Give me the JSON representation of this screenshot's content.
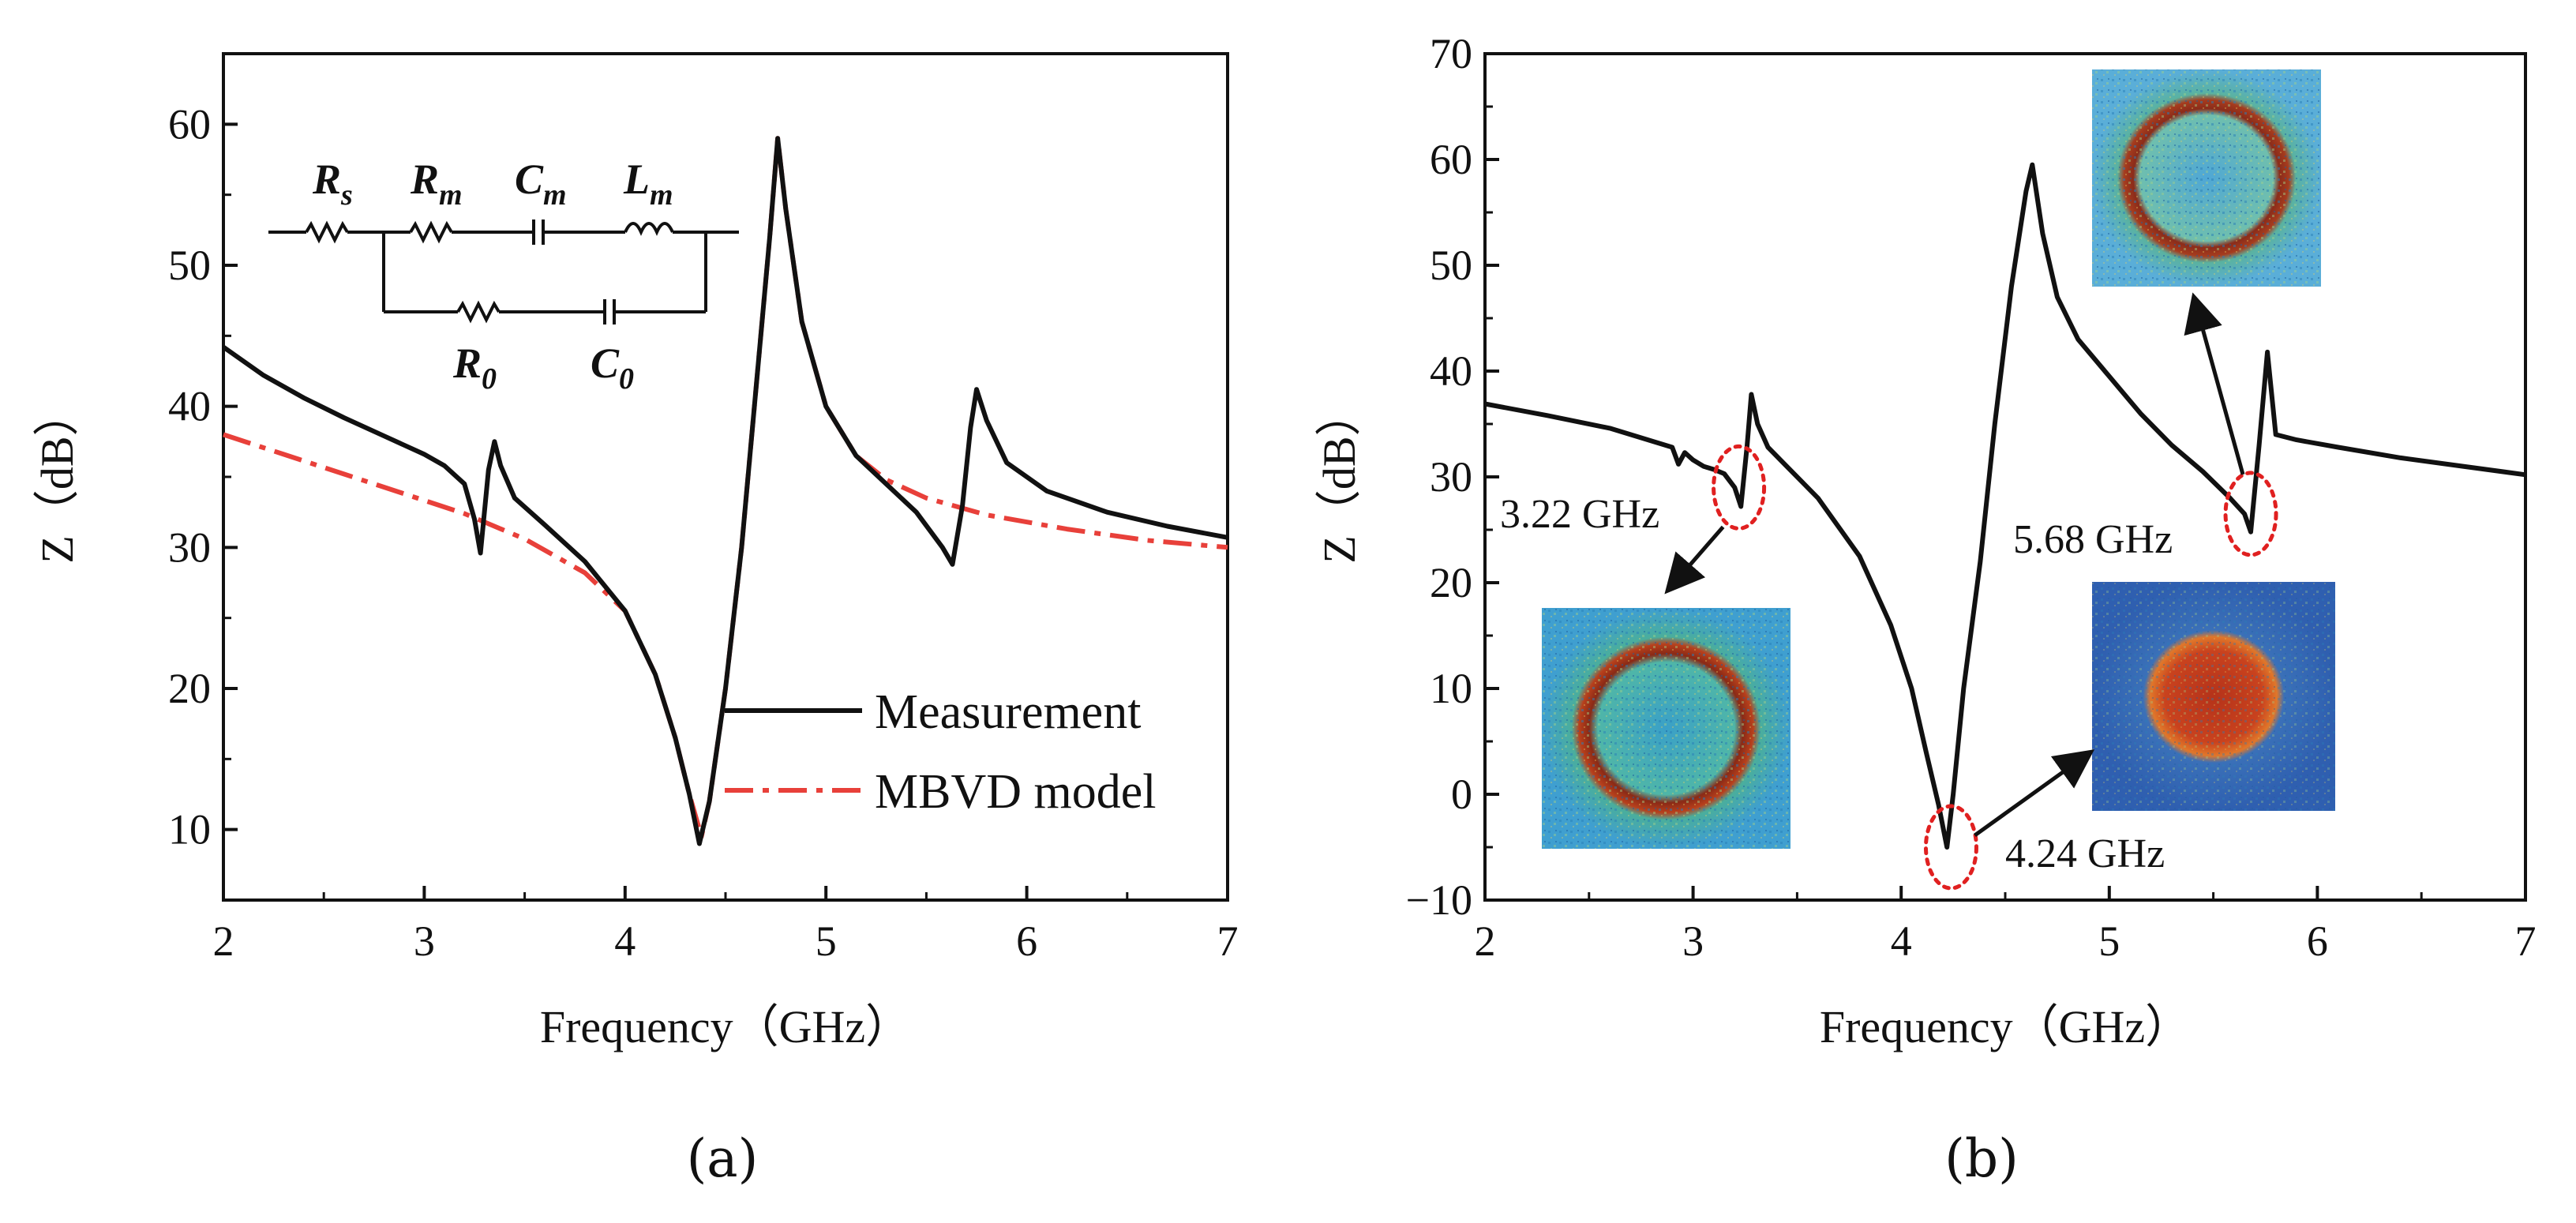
{
  "chart_data": [
    {
      "panel": "(a)",
      "type": "line",
      "xlabel": "Frequency（GHz）",
      "ylabel": "Z（dB）",
      "xlim": [
        2,
        7
      ],
      "ylim": [
        5,
        65
      ],
      "xticks": [
        2,
        3,
        4,
        5,
        6,
        7
      ],
      "yticks": [
        10,
        20,
        30,
        40,
        50,
        60
      ],
      "legend_position": "bottom-right",
      "series": [
        {
          "name": "Measurement",
          "style": "solid",
          "color": "#111111",
          "points": [
            [
              2.0,
              44.2
            ],
            [
              2.2,
              42.2
            ],
            [
              2.4,
              40.6
            ],
            [
              2.6,
              39.2
            ],
            [
              2.8,
              37.9
            ],
            [
              3.0,
              36.6
            ],
            [
              3.1,
              35.8
            ],
            [
              3.2,
              34.5
            ],
            [
              3.25,
              32.0
            ],
            [
              3.28,
              29.6
            ],
            [
              3.32,
              35.5
            ],
            [
              3.35,
              37.5
            ],
            [
              3.38,
              35.8
            ],
            [
              3.45,
              33.5
            ],
            [
              3.6,
              31.6
            ],
            [
              3.8,
              29.0
            ],
            [
              4.0,
              25.5
            ],
            [
              4.15,
              21.0
            ],
            [
              4.25,
              16.5
            ],
            [
              4.32,
              12.5
            ],
            [
              4.37,
              9.0
            ],
            [
              4.42,
              12.0
            ],
            [
              4.5,
              20.0
            ],
            [
              4.58,
              30.0
            ],
            [
              4.65,
              41.0
            ],
            [
              4.72,
              52.0
            ],
            [
              4.76,
              59.0
            ],
            [
              4.8,
              54.0
            ],
            [
              4.88,
              46.0
            ],
            [
              5.0,
              40.0
            ],
            [
              5.15,
              36.5
            ],
            [
              5.3,
              34.5
            ],
            [
              5.45,
              32.5
            ],
            [
              5.58,
              30.0
            ],
            [
              5.63,
              28.8
            ],
            [
              5.68,
              33.0
            ],
            [
              5.72,
              38.5
            ],
            [
              5.75,
              41.2
            ],
            [
              5.8,
              39.0
            ],
            [
              5.9,
              36.0
            ],
            [
              6.1,
              34.0
            ],
            [
              6.4,
              32.5
            ],
            [
              6.7,
              31.5
            ],
            [
              7.0,
              30.7
            ]
          ]
        },
        {
          "name": "MBVD model",
          "style": "dashdot",
          "color": "#e8403a",
          "points": [
            [
              2.0,
              38.0
            ],
            [
              2.3,
              36.6
            ],
            [
              2.6,
              35.2
            ],
            [
              2.9,
              33.8
            ],
            [
              3.2,
              32.4
            ],
            [
              3.5,
              30.6
            ],
            [
              3.8,
              28.2
            ],
            [
              4.0,
              25.5
            ],
            [
              4.15,
              21.0
            ],
            [
              4.25,
              16.5
            ],
            [
              4.32,
              12.5
            ],
            [
              4.38,
              9.5
            ],
            [
              4.42,
              12.0
            ],
            [
              4.5,
              20.0
            ],
            [
              4.58,
              30.0
            ],
            [
              4.65,
              41.0
            ],
            [
              4.72,
              52.0
            ],
            [
              4.76,
              59.0
            ],
            [
              4.8,
              54.0
            ],
            [
              4.88,
              46.0
            ],
            [
              5.0,
              40.0
            ],
            [
              5.15,
              36.5
            ],
            [
              5.3,
              34.8
            ],
            [
              5.5,
              33.5
            ],
            [
              5.8,
              32.3
            ],
            [
              6.2,
              31.3
            ],
            [
              6.6,
              30.5
            ],
            [
              7.0,
              30.0
            ]
          ]
        }
      ],
      "inset_circuit": {
        "labels": [
          "R",
          "R",
          "C",
          "L",
          "R",
          "C"
        ],
        "subscripts": [
          "s",
          "m",
          "m",
          "m",
          "0",
          "0"
        ]
      }
    },
    {
      "panel": "(b)",
      "type": "line",
      "xlabel": "Frequency（GHz）",
      "ylabel": "Z（dB）",
      "xlim": [
        2,
        7
      ],
      "ylim": [
        -10,
        70
      ],
      "xticks": [
        2,
        3,
        4,
        5,
        6,
        7
      ],
      "yticks": [
        -10,
        0,
        10,
        20,
        30,
        40,
        50,
        60,
        70
      ],
      "series": [
        {
          "name": "Measurement",
          "style": "solid",
          "color": "#111111",
          "points": [
            [
              2.0,
              36.9
            ],
            [
              2.3,
              35.8
            ],
            [
              2.6,
              34.6
            ],
            [
              2.9,
              32.8
            ],
            [
              2.93,
              31.2
            ],
            [
              2.96,
              32.3
            ],
            [
              3.0,
              31.6
            ],
            [
              3.05,
              31.0
            ],
            [
              3.1,
              30.7
            ],
            [
              3.15,
              30.3
            ],
            [
              3.2,
              29.0
            ],
            [
              3.23,
              27.2
            ],
            [
              3.26,
              33.0
            ],
            [
              3.28,
              37.8
            ],
            [
              3.31,
              35.0
            ],
            [
              3.36,
              32.8
            ],
            [
              3.45,
              31.0
            ],
            [
              3.6,
              28.0
            ],
            [
              3.8,
              22.5
            ],
            [
              3.95,
              16.0
            ],
            [
              4.05,
              10.0
            ],
            [
              4.12,
              4.0
            ],
            [
              4.18,
              -1.0
            ],
            [
              4.22,
              -5.0
            ],
            [
              4.25,
              0.0
            ],
            [
              4.3,
              10.0
            ],
            [
              4.38,
              22.0
            ],
            [
              4.45,
              35.0
            ],
            [
              4.53,
              48.0
            ],
            [
              4.6,
              57.0
            ],
            [
              4.63,
              59.5
            ],
            [
              4.68,
              53.0
            ],
            [
              4.75,
              47.0
            ],
            [
              4.85,
              43.0
            ],
            [
              5.0,
              39.5
            ],
            [
              5.15,
              36.0
            ],
            [
              5.3,
              33.0
            ],
            [
              5.45,
              30.5
            ],
            [
              5.58,
              28.0
            ],
            [
              5.65,
              26.5
            ],
            [
              5.68,
              24.8
            ],
            [
              5.72,
              33.0
            ],
            [
              5.76,
              41.8
            ],
            [
              5.8,
              34.0
            ],
            [
              5.9,
              33.5
            ],
            [
              6.1,
              32.8
            ],
            [
              6.4,
              31.8
            ],
            [
              6.7,
              31.0
            ],
            [
              7.0,
              30.2
            ]
          ]
        }
      ],
      "annotations": [
        {
          "label": "3.22 GHz",
          "x": 3.22,
          "y": 29.0
        },
        {
          "label": "4.24 GHz",
          "x": 4.24,
          "y": -5.0
        },
        {
          "label": "5.68 GHz",
          "x": 5.68,
          "y": 26.5
        }
      ],
      "insets": [
        "mode-shape-3.22-GHz",
        "mode-shape-4.24-GHz",
        "mode-shape-5.68-GHz"
      ]
    }
  ],
  "captions": {
    "a": "(a)",
    "b": "(b)"
  },
  "colors": {
    "measurement": "#111111",
    "model": "#e8403a",
    "annotation": "#e02020"
  }
}
